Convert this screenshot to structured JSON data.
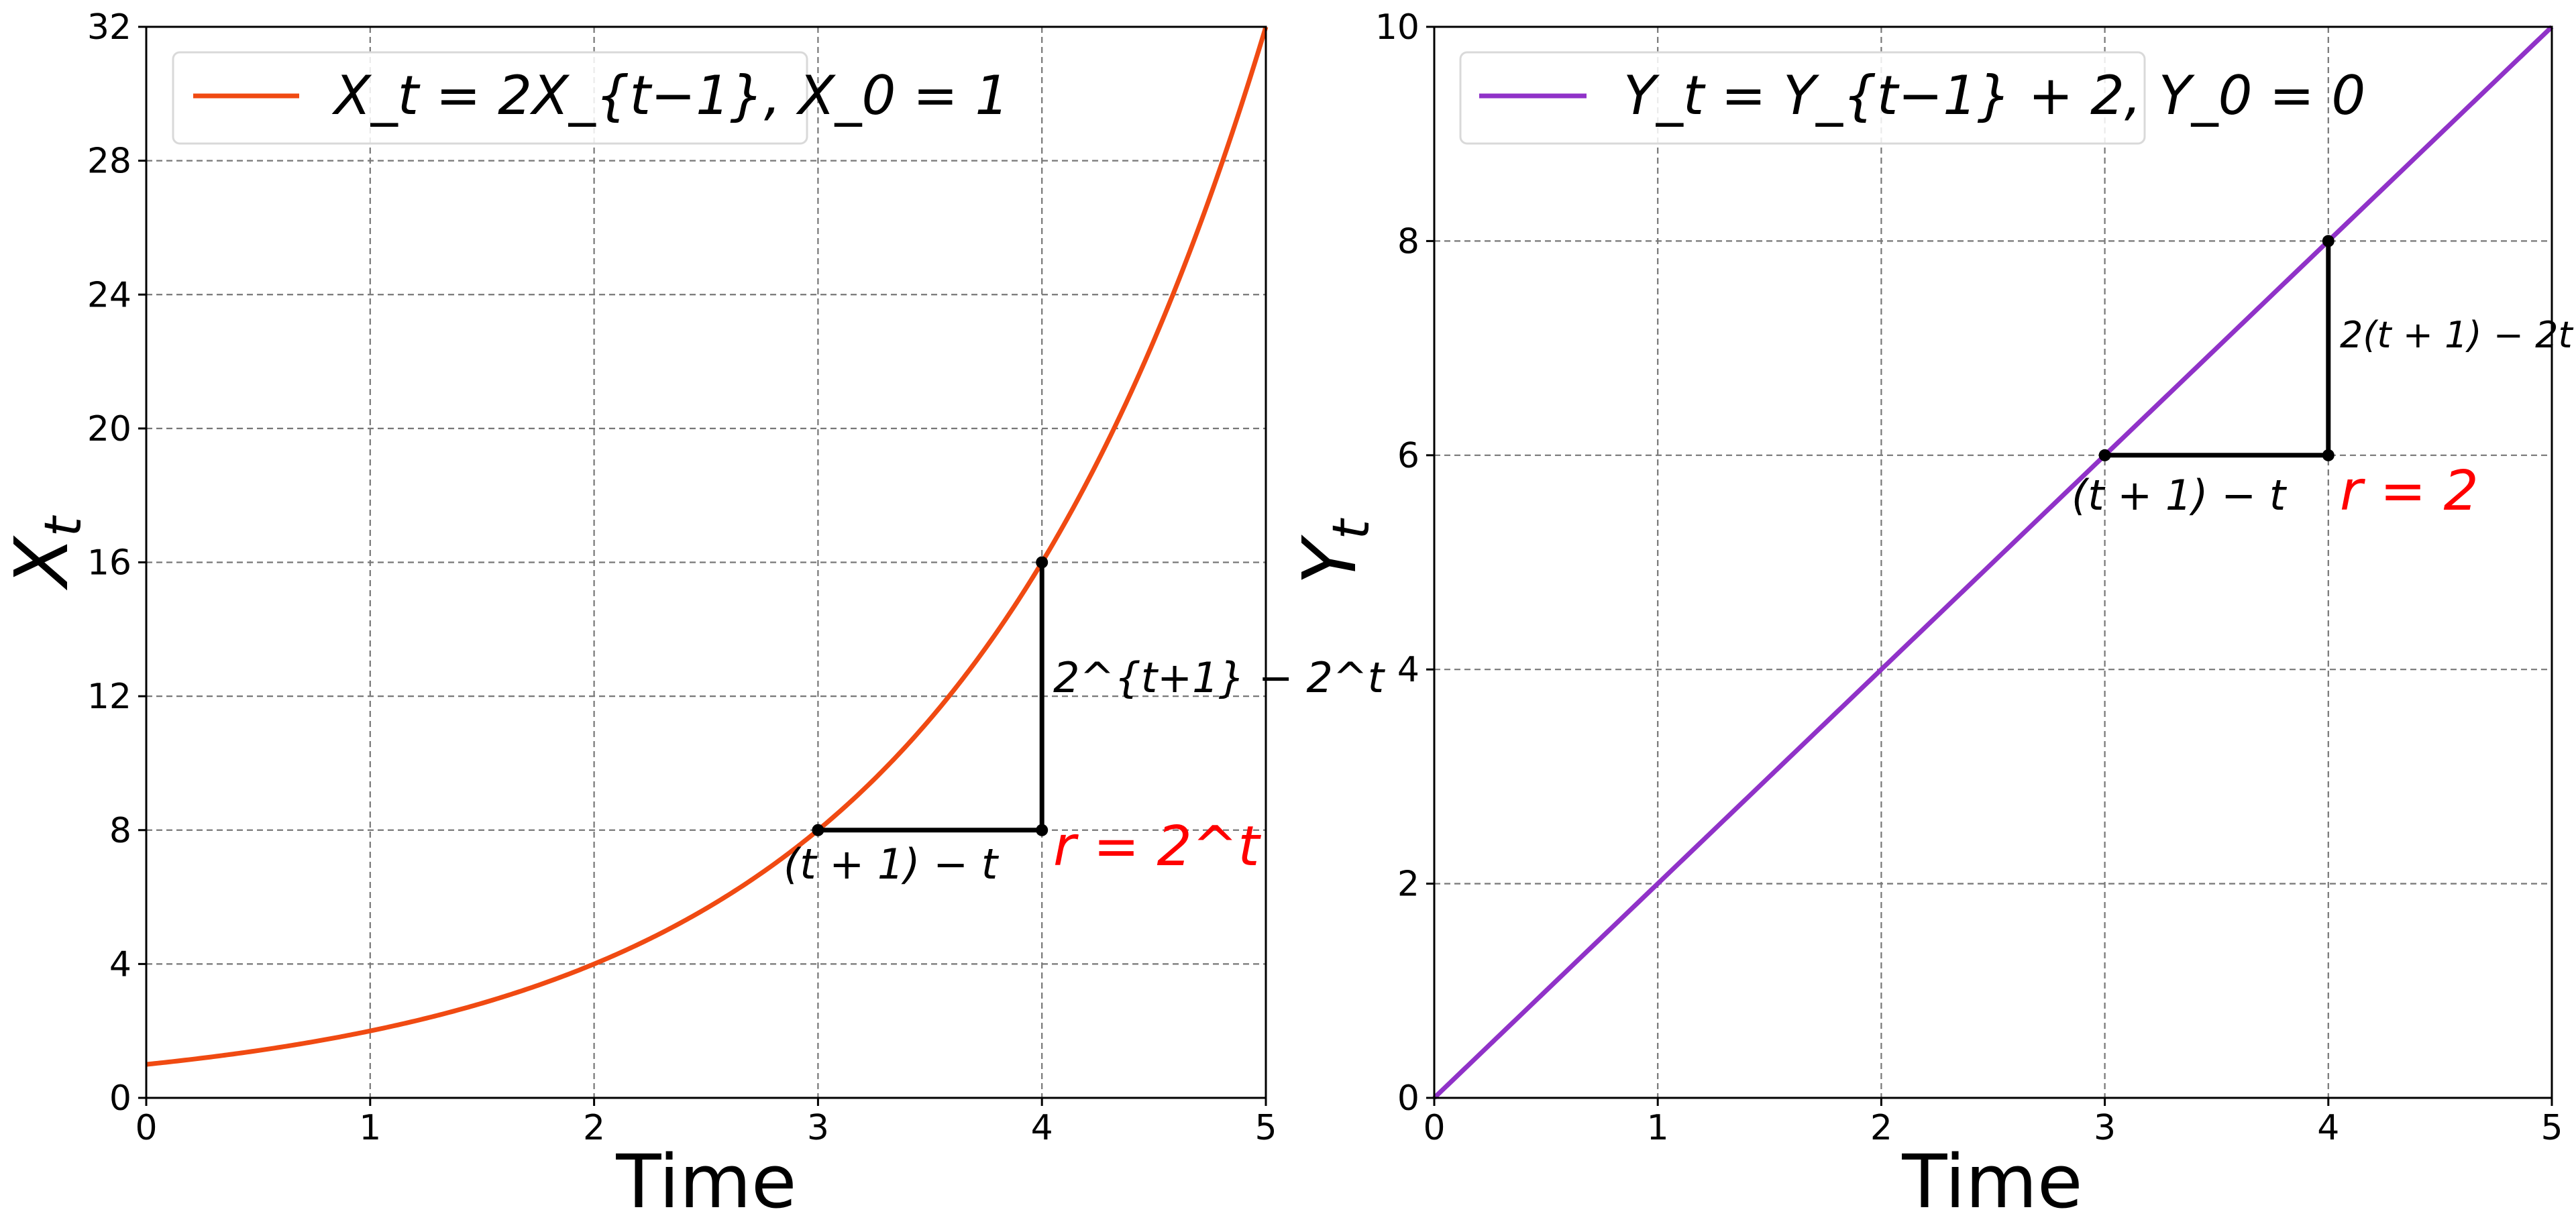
{
  "chart_data": [
    {
      "type": "line",
      "title": "",
      "xlabel": "Time",
      "ylabel_base": "X",
      "ylabel_sub": "t",
      "xlim": [
        0,
        5
      ],
      "ylim": [
        0,
        32
      ],
      "xticks": [
        0,
        1,
        2,
        3,
        4,
        5
      ],
      "yticks": [
        0,
        4,
        8,
        12,
        16,
        20,
        24,
        28,
        32
      ],
      "grid": true,
      "legend_position": "top-left",
      "legend": "X_t = 2X_{t−1}, X_0 = 1",
      "series": [
        {
          "name": "X_t = 2X_{t−1}, X_0 = 1",
          "function": "2^t",
          "color": "#f04a12"
        }
      ],
      "triangle": {
        "points": [
          [
            3,
            8
          ],
          [
            4,
            8
          ],
          [
            4,
            16
          ]
        ],
        "horizontal_label": "(t + 1) − t",
        "vertical_label": "2^{t+1} − 2^t",
        "ratio_label": "r = 2^t",
        "ratio_color": "#ff0000"
      }
    },
    {
      "type": "line",
      "title": "",
      "xlabel": "Time",
      "ylabel_base": "Y",
      "ylabel_sub": "t",
      "xlim": [
        0,
        5
      ],
      "ylim": [
        0,
        10
      ],
      "xticks": [
        0,
        1,
        2,
        3,
        4,
        5
      ],
      "yticks": [
        0,
        2,
        4,
        6,
        8,
        10
      ],
      "grid": true,
      "legend_position": "top-left",
      "legend": "Y_t = Y_{t−1} + 2, Y_0 = 0",
      "series": [
        {
          "name": "Y_t = Y_{t−1} + 2, Y_0 = 0",
          "function": "2t",
          "color": "#9032c8"
        }
      ],
      "triangle": {
        "points": [
          [
            3,
            6
          ],
          [
            4,
            6
          ],
          [
            4,
            8
          ]
        ],
        "horizontal_label": "(t + 1) − t",
        "vertical_label": "2(t + 1) − 2t",
        "ratio_label": "r = 2",
        "ratio_color": "#ff0000"
      }
    }
  ]
}
